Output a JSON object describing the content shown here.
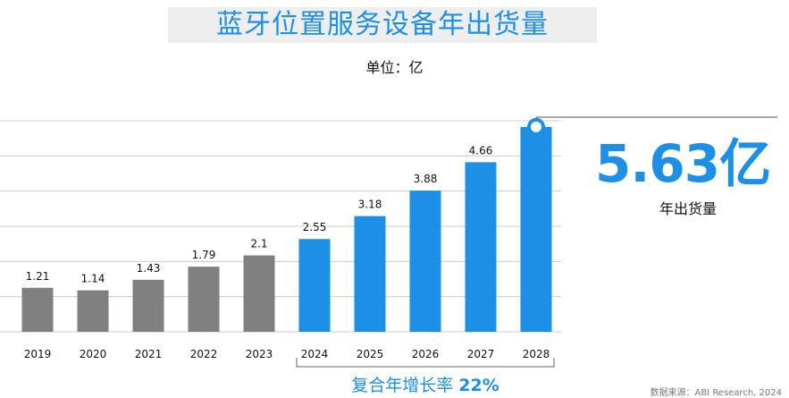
{
  "title": "蓝牙位置服务设备年出货量",
  "unit_label": "单位：亿",
  "highlight": {
    "value": "5.63亿",
    "label": "年出货量"
  },
  "cagr": {
    "label": "复合年增长率",
    "value": "22%"
  },
  "source": "数据来源：ABI Research, 2024",
  "colors": {
    "historical": "#808080",
    "forecast": "#1e8fe6",
    "title": "#1e8fe6"
  },
  "chart_data": {
    "type": "bar",
    "categories": [
      "2019",
      "2020",
      "2021",
      "2022",
      "2023",
      "2024",
      "2025",
      "2026",
      "2027",
      "2028"
    ],
    "values": [
      1.21,
      1.14,
      1.43,
      1.79,
      2.1,
      2.55,
      3.18,
      3.88,
      4.66,
      5.63
    ],
    "data_labels": [
      "1.21",
      "1.14",
      "1.43",
      "1.79",
      "2.1",
      "2.55",
      "3.18",
      "3.88",
      "4.66",
      ""
    ],
    "forecast_from_index": 5,
    "ylim": [
      0,
      5.8
    ],
    "grid": true
  }
}
